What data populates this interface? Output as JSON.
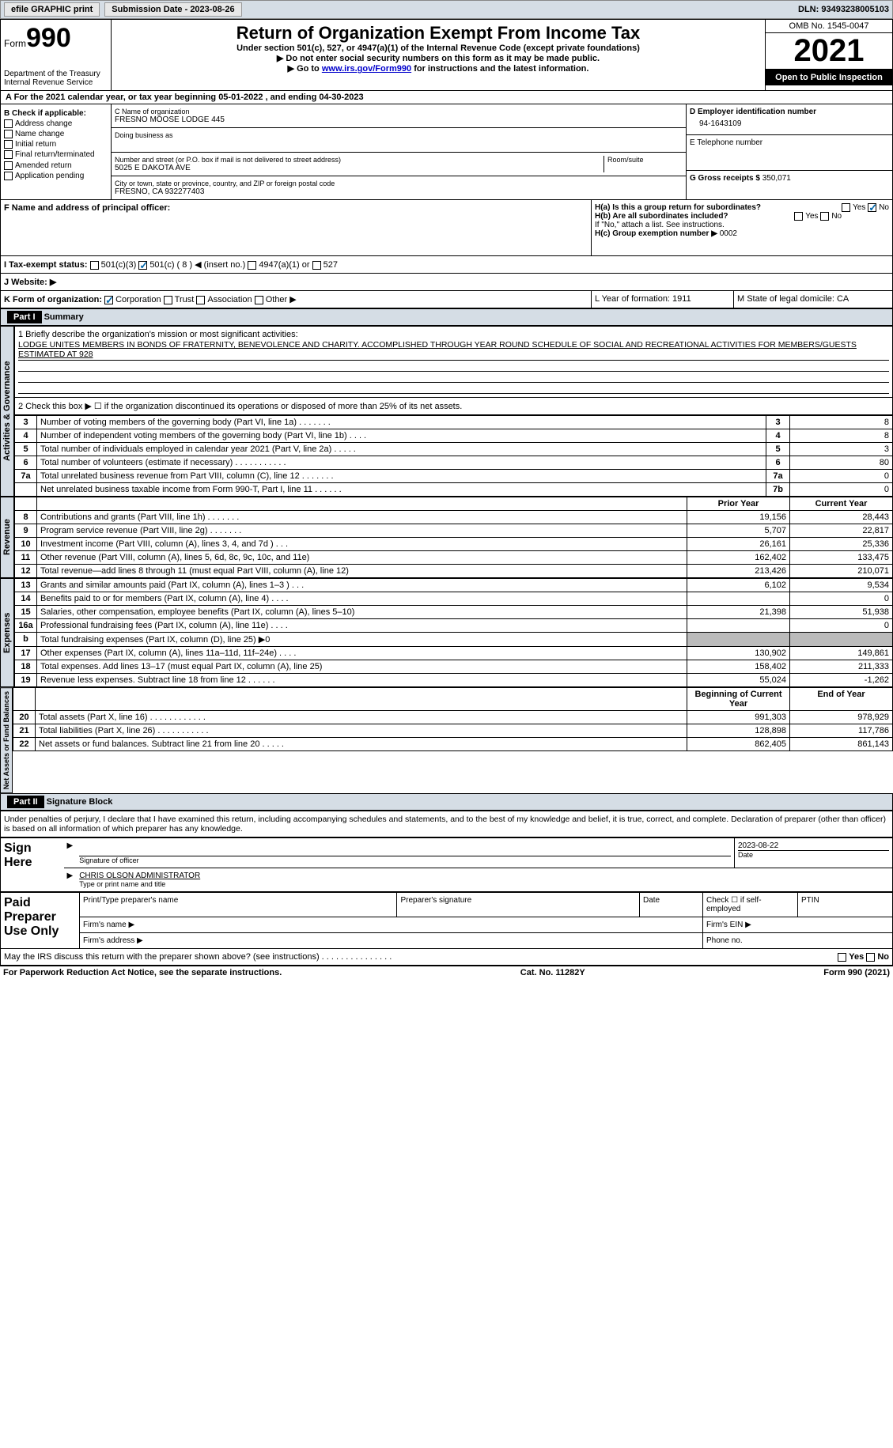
{
  "topbar": {
    "efile": "efile GRAPHIC print",
    "submission": "Submission Date - 2023-08-26",
    "dln": "DLN: 93493238005103"
  },
  "header": {
    "form_label": "Form",
    "form_no": "990",
    "treasury": "Department of the Treasury",
    "irs": "Internal Revenue Service",
    "title": "Return of Organization Exempt From Income Tax",
    "subtitle": "Under section 501(c), 527, or 4947(a)(1) of the Internal Revenue Code (except private foundations)",
    "note1": "▶ Do not enter social security numbers on this form as it may be made public.",
    "note2_pre": "▶ Go to ",
    "note2_link": "www.irs.gov/Form990",
    "note2_post": " for instructions and the latest information.",
    "omb": "OMB No. 1545-0047",
    "year": "2021",
    "inspection": "Open to Public Inspection"
  },
  "rowA": "A For the 2021 calendar year, or tax year beginning 05-01-2022   , and ending 04-30-2023",
  "colB": {
    "label": "B Check if applicable:",
    "items": [
      "Address change",
      "Name change",
      "Initial return",
      "Final return/terminated",
      "Amended return",
      "Application pending"
    ]
  },
  "colC": {
    "name_label": "C Name of organization",
    "name": "FRESNO MOOSE LODGE 445",
    "dba_label": "Doing business as",
    "addr_label": "Number and street (or P.O. box if mail is not delivered to street address)",
    "room_label": "Room/suite",
    "addr": "5025 E DAKOTA AVE",
    "city_label": "City or town, state or province, country, and ZIP or foreign postal code",
    "city": "FRESNO, CA  932277403"
  },
  "colD": {
    "ein_label": "D Employer identification number",
    "ein": "94-1643109",
    "tel_label": "E Telephone number",
    "gross_label": "G Gross receipts $",
    "gross": "350,071"
  },
  "rowF": {
    "f_label": "F  Name and address of principal officer:",
    "ha_label": "H(a)  Is this a group return for subordinates?",
    "hb_label": "H(b)  Are all subordinates included?",
    "hb_note": "If \"No,\" attach a list. See instructions.",
    "hc_label": "H(c)  Group exemption number ▶",
    "hc_val": "0002"
  },
  "rowI": {
    "label": "I  Tax-exempt status:",
    "o1": "501(c)(3)",
    "o2": "501(c) ( 8 ) ◀ (insert no.)",
    "o3": "4947(a)(1) or",
    "o4": "527"
  },
  "rowJ": "J  Website: ▶",
  "rowK": {
    "label": "K Form of organization:",
    "o1": "Corporation",
    "o2": "Trust",
    "o3": "Association",
    "o4": "Other ▶",
    "L": "L Year of formation: 1911",
    "M": "M State of legal domicile: CA"
  },
  "partI": {
    "part": "Part I",
    "title": "Summary",
    "q1_label": "1  Briefly describe the organization's mission or most significant activities:",
    "q1_text": "LODGE UNITES MEMBERS IN BONDS OF FRATERNITY, BENEVOLENCE AND CHARITY. ACCOMPLISHED THROUGH YEAR ROUND SCHEDULE OF SOCIAL AND RECREATIONAL ACTIVITIES FOR MEMBERS/GUESTS ESTIMATED AT 928",
    "q2": "2  Check this box ▶ ☐ if the organization discontinued its operations or disposed of more than 25% of its net assets.",
    "rows_ag": [
      {
        "n": "3",
        "d": "Number of voting members of the governing body (Part VI, line 1a)   .    .    .    .    .    .    .",
        "b": "3",
        "v": "8"
      },
      {
        "n": "4",
        "d": "Number of independent voting members of the governing body (Part VI, line 1b)   .    .    .    .",
        "b": "4",
        "v": "8"
      },
      {
        "n": "5",
        "d": "Total number of individuals employed in calendar year 2021 (Part V, line 2a)   .    .    .    .    .",
        "b": "5",
        "v": "3"
      },
      {
        "n": "6",
        "d": "Total number of volunteers (estimate if necessary)   .    .    .    .    .    .    .    .    .    .    .",
        "b": "6",
        "v": "80"
      },
      {
        "n": "7a",
        "d": "Total unrelated business revenue from Part VIII, column (C), line 12   .    .    .    .    .    .    .",
        "b": "7a",
        "v": "0"
      },
      {
        "n": "",
        "d": "Net unrelated business taxable income from Form 990-T, Part I, line 11   .    .    .    .    .    .",
        "b": "7b",
        "v": "0"
      }
    ],
    "col_prior": "Prior Year",
    "col_current": "Current Year",
    "rows_rev": [
      {
        "n": "8",
        "d": "Contributions and grants (Part VIII, line 1h)   .    .    .    .    .    .    .",
        "p": "19,156",
        "c": "28,443"
      },
      {
        "n": "9",
        "d": "Program service revenue (Part VIII, line 2g)   .    .    .    .    .    .    .",
        "p": "5,707",
        "c": "22,817"
      },
      {
        "n": "10",
        "d": "Investment income (Part VIII, column (A), lines 3, 4, and 7d )   .    .    .",
        "p": "26,161",
        "c": "25,336"
      },
      {
        "n": "11",
        "d": "Other revenue (Part VIII, column (A), lines 5, 6d, 8c, 9c, 10c, and 11e)",
        "p": "162,402",
        "c": "133,475"
      },
      {
        "n": "12",
        "d": "Total revenue—add lines 8 through 11 (must equal Part VIII, column (A), line 12)",
        "p": "213,426",
        "c": "210,071"
      }
    ],
    "rows_exp": [
      {
        "n": "13",
        "d": "Grants and similar amounts paid (Part IX, column (A), lines 1–3 )   .    .    .",
        "p": "6,102",
        "c": "9,534"
      },
      {
        "n": "14",
        "d": "Benefits paid to or for members (Part IX, column (A), line 4)   .    .    .    .",
        "p": "",
        "c": "0"
      },
      {
        "n": "15",
        "d": "Salaries, other compensation, employee benefits (Part IX, column (A), lines 5–10)",
        "p": "21,398",
        "c": "51,938"
      },
      {
        "n": "16a",
        "d": "Professional fundraising fees (Part IX, column (A), line 11e)   .    .    .    .",
        "p": "",
        "c": "0"
      },
      {
        "n": " b",
        "d": "Total fundraising expenses (Part IX, column (D), line 25) ▶0",
        "p": "grey",
        "c": "grey"
      },
      {
        "n": "17",
        "d": "Other expenses (Part IX, column (A), lines 11a–11d, 11f–24e)   .    .    .    .",
        "p": "130,902",
        "c": "149,861"
      },
      {
        "n": "18",
        "d": "Total expenses. Add lines 13–17 (must equal Part IX, column (A), line 25)",
        "p": "158,402",
        "c": "211,333"
      },
      {
        "n": "19",
        "d": "Revenue less expenses. Subtract line 18 from line 12   .    .    .    .    .    .",
        "p": "55,024",
        "c": "-1,262"
      }
    ],
    "col_beg": "Beginning of Current Year",
    "col_end": "End of Year",
    "rows_net": [
      {
        "n": "20",
        "d": "Total assets (Part X, line 16)   .    .    .    .    .    .    .    .    .    .    .    .",
        "p": "991,303",
        "c": "978,929"
      },
      {
        "n": "21",
        "d": "Total liabilities (Part X, line 26)   .    .    .    .    .    .    .    .    .    .    .",
        "p": "128,898",
        "c": "117,786"
      },
      {
        "n": "22",
        "d": "Net assets or fund balances. Subtract line 21 from line 20   .    .    .    .    .",
        "p": "862,405",
        "c": "861,143"
      }
    ],
    "vlabels": {
      "ag": "Activities & Governance",
      "rev": "Revenue",
      "exp": "Expenses",
      "net": "Net Assets or Fund Balances"
    }
  },
  "partII": {
    "part": "Part II",
    "title": "Signature Block",
    "decl": "Under penalties of perjury, I declare that I have examined this return, including accompanying schedules and statements, and to the best of my knowledge and belief, it is true, correct, and complete. Declaration of preparer (other than officer) is based on all information of which preparer has any knowledge.",
    "sign_here": "Sign Here",
    "sig_officer": "Signature of officer",
    "date": "Date",
    "date_val": "2023-08-22",
    "name_title": "CHRIS OLSON  ADMINISTRATOR",
    "name_title_label": "Type or print name and title",
    "paid": "Paid Preparer Use Only",
    "prep_name": "Print/Type preparer's name",
    "prep_sig": "Preparer's signature",
    "prep_date": "Date",
    "check_self": "Check ☐ if self-employed",
    "ptin": "PTIN",
    "firm_name": "Firm's name   ▶",
    "firm_ein": "Firm's EIN ▶",
    "firm_addr": "Firm's address ▶",
    "phone": "Phone no.",
    "discuss": "May the IRS discuss this return with the preparer shown above? (see instructions)   .    .    .    .    .    .    .    .    .    .    .    .    .    .    .",
    "yes": "Yes",
    "no": "No"
  },
  "footer": {
    "pra": "For Paperwork Reduction Act Notice, see the separate instructions.",
    "cat": "Cat. No. 11282Y",
    "form": "Form 990 (2021)"
  }
}
